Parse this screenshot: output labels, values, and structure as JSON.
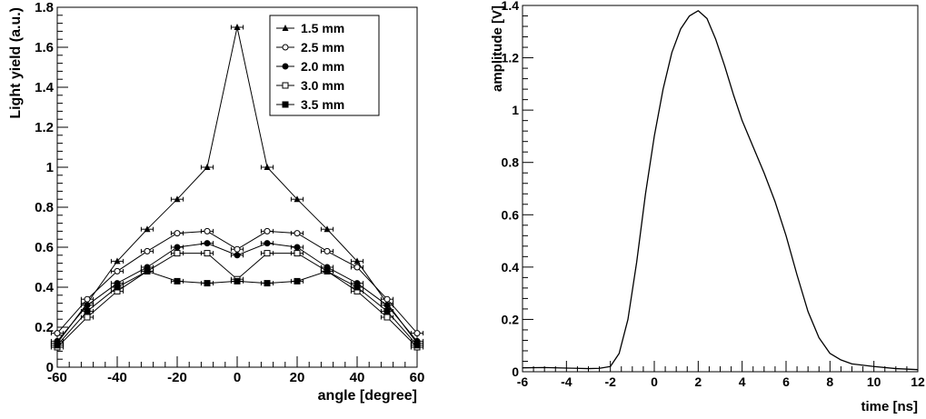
{
  "chart_data": [
    {
      "type": "line",
      "xlabel": "angle [degree]",
      "ylabel": "Light yield (a.u.)",
      "xlim": [
        -60,
        60
      ],
      "ylim": [
        0,
        1.8
      ],
      "x_ticks": [
        "-60",
        "-40",
        "-20",
        "0",
        "20",
        "40",
        "60"
      ],
      "y_ticks": [
        "0",
        "0.2",
        "0.4",
        "0.6",
        "0.8",
        "1",
        "1.2",
        "1.4",
        "1.6",
        "1.8"
      ],
      "x_error": 2,
      "grid": false,
      "legend_position": "top-right",
      "x": [
        -60,
        -50,
        -40,
        -30,
        -20,
        -10,
        0,
        10,
        20,
        30,
        40,
        50,
        60
      ],
      "series": [
        {
          "name": "1.5 mm",
          "marker": "triangle-filled",
          "values": [
            0.12,
            0.32,
            0.53,
            0.69,
            0.84,
            1.0,
            1.7,
            1.0,
            0.84,
            0.69,
            0.53,
            0.32,
            0.12
          ]
        },
        {
          "name": "2.5 mm",
          "marker": "circle-open",
          "values": [
            0.17,
            0.34,
            0.48,
            0.58,
            0.67,
            0.68,
            0.59,
            0.68,
            0.67,
            0.58,
            0.5,
            0.34,
            0.17
          ]
        },
        {
          "name": "2.0 mm",
          "marker": "circle-filled",
          "values": [
            0.13,
            0.31,
            0.42,
            0.5,
            0.6,
            0.62,
            0.56,
            0.62,
            0.6,
            0.5,
            0.42,
            0.31,
            0.13
          ]
        },
        {
          "name": "3.0 mm",
          "marker": "square-open",
          "values": [
            0.1,
            0.25,
            0.38,
            0.48,
            0.57,
            0.57,
            0.44,
            0.57,
            0.57,
            0.48,
            0.38,
            0.25,
            0.1
          ]
        },
        {
          "name": "3.5 mm",
          "marker": "square-filled",
          "values": [
            0.11,
            0.28,
            0.4,
            0.48,
            0.43,
            0.42,
            0.43,
            0.42,
            0.43,
            0.48,
            0.4,
            0.28,
            0.11
          ]
        }
      ]
    },
    {
      "type": "line",
      "xlabel": "time [ns]",
      "ylabel": "amplitude [V]",
      "xlim": [
        -6,
        12
      ],
      "ylim": [
        0,
        1.4
      ],
      "x_ticks": [
        "-6",
        "-4",
        "-2",
        "0",
        "2",
        "4",
        "6",
        "8",
        "10",
        "12"
      ],
      "y_ticks": [
        "0",
        "0.2",
        "0.4",
        "0.6",
        "0.8",
        "1",
        "1.2",
        "1.4"
      ],
      "grid": false,
      "series": [
        {
          "x": [
            -6,
            -5,
            -4,
            -3,
            -2.5,
            -2,
            -1.6,
            -1.2,
            -0.8,
            -0.4,
            0,
            0.4,
            0.8,
            1.2,
            1.6,
            2,
            2.4,
            2.8,
            3.2,
            3.6,
            4,
            4.5,
            5,
            5.5,
            6,
            6.5,
            7,
            7.5,
            8,
            8.5,
            9,
            10,
            11,
            12
          ],
          "values": [
            0.015,
            0.016,
            0.014,
            0.012,
            0.013,
            0.02,
            0.07,
            0.2,
            0.42,
            0.68,
            0.9,
            1.08,
            1.22,
            1.31,
            1.36,
            1.38,
            1.35,
            1.27,
            1.17,
            1.06,
            0.96,
            0.86,
            0.76,
            0.65,
            0.52,
            0.37,
            0.23,
            0.13,
            0.07,
            0.045,
            0.03,
            0.02,
            0.012,
            0.008
          ]
        }
      ]
    }
  ]
}
